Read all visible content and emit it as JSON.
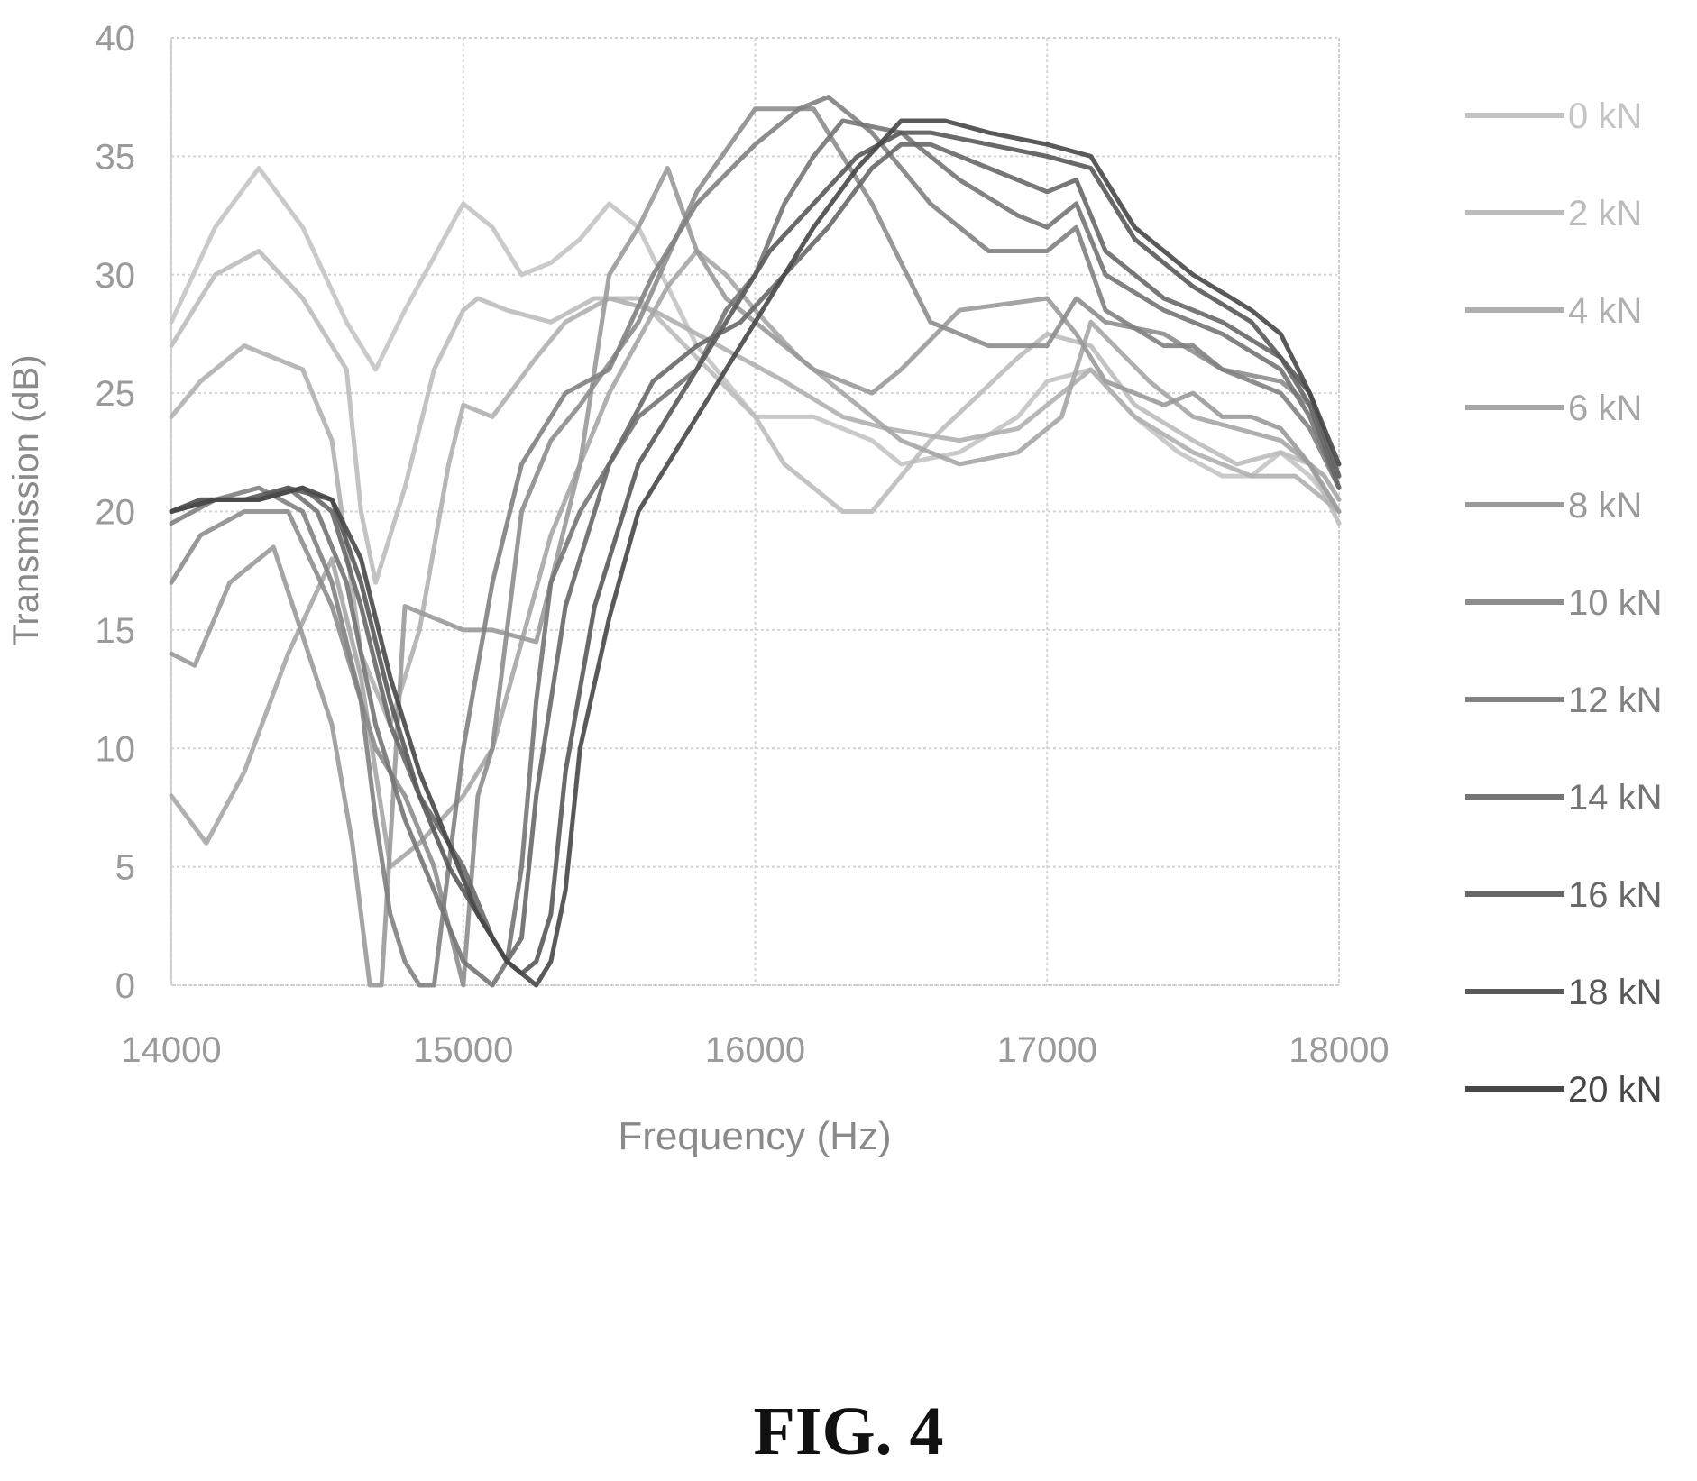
{
  "figure_caption": "FIG. 4",
  "chart_data": {
    "type": "line",
    "title": "",
    "xlabel": "Frequency (Hz)",
    "ylabel": "Transmission (dB)",
    "xlim": [
      14000,
      18000
    ],
    "ylim": [
      0,
      40
    ],
    "xticks": [
      14000,
      15000,
      16000,
      17000,
      18000
    ],
    "yticks": [
      0,
      5,
      10,
      15,
      20,
      25,
      30,
      35,
      40
    ],
    "grid": true,
    "legend_position": "right",
    "series": [
      {
        "name": "0 kN",
        "color": "#c4c4c4",
        "x": [
          14000,
          14150,
          14300,
          14450,
          14600,
          14700,
          14800,
          15000,
          15100,
          15200,
          15300,
          15400,
          15500,
          15600,
          15800,
          16000,
          16100,
          16200,
          16300,
          16400,
          16500,
          16700,
          16900,
          17000,
          17150,
          17300,
          17450,
          17600,
          17700,
          17800,
          17900,
          18000
        ],
        "y": [
          28,
          32,
          34.5,
          32,
          28,
          26,
          28.5,
          33,
          32,
          30,
          30.5,
          31.5,
          33,
          32,
          27,
          24,
          24,
          24,
          23.5,
          23,
          22,
          22.5,
          24,
          25.5,
          26,
          24,
          22.5,
          21.5,
          21.5,
          22.5,
          21.5,
          20
        ]
      },
      {
        "name": "2 kN",
        "color": "#bcbcbc",
        "x": [
          14000,
          14150,
          14300,
          14450,
          14600,
          14650,
          14700,
          14800,
          14900,
          15000,
          15050,
          15150,
          15300,
          15450,
          15600,
          15800,
          16000,
          16100,
          16200,
          16300,
          16400,
          16600,
          16900,
          17000,
          17150,
          17300,
          17500,
          17650,
          17800,
          17900,
          18000
        ],
        "y": [
          27,
          30,
          31,
          29,
          26,
          20,
          17,
          21,
          26,
          28.5,
          29,
          28.5,
          28,
          29,
          29,
          26.5,
          24,
          22,
          21,
          20,
          20,
          23,
          26.5,
          27.5,
          27,
          24.5,
          23,
          22,
          22.5,
          22,
          19.5
        ]
      },
      {
        "name": "4 kN",
        "color": "#b0b0b0",
        "x": [
          14000,
          14100,
          14250,
          14450,
          14550,
          14650,
          14750,
          14850,
          14950,
          15000,
          15100,
          15250,
          15350,
          15500,
          15650,
          15800,
          15950,
          16100,
          16300,
          16450,
          16700,
          16900,
          17000,
          17150,
          17300,
          17500,
          17700,
          17850,
          18000
        ],
        "y": [
          24,
          25.5,
          27,
          26,
          23,
          14,
          11,
          15,
          22,
          24.5,
          24,
          26.5,
          28,
          29,
          28.5,
          27.5,
          26.5,
          25.5,
          24,
          23.5,
          23,
          23.5,
          24.5,
          26,
          24,
          22.5,
          21.5,
          21.5,
          20
        ]
      },
      {
        "name": "6 kN",
        "color": "#a6a6a6",
        "x": [
          14000,
          14120,
          14250,
          14400,
          14550,
          14650,
          14750,
          14850,
          15000,
          15100,
          15300,
          15500,
          15700,
          15800,
          15900,
          16000,
          16150,
          16300,
          16500,
          16700,
          16900,
          17050,
          17150,
          17350,
          17500,
          17650,
          17800,
          17950,
          18000
        ],
        "y": [
          8,
          6,
          9,
          14,
          18,
          13,
          5,
          6,
          8,
          10,
          19,
          25,
          29.5,
          31,
          30,
          28.5,
          26.5,
          25,
          23,
          22,
          22.5,
          24,
          28,
          25.5,
          24,
          23.5,
          23,
          21.5,
          20.5
        ]
      },
      {
        "name": "8 kN",
        "color": "#9a9a9a",
        "x": [
          14000,
          14080,
          14200,
          14350,
          14550,
          14620,
          14680,
          14720,
          14800,
          15000,
          15100,
          15250,
          15400,
          15500,
          15600,
          15700,
          15800,
          15900,
          16000,
          16100,
          16200,
          16400,
          16500,
          16700,
          17000,
          17100,
          17200,
          17300,
          17400,
          17500,
          17600,
          17700,
          17800,
          17900,
          18000
        ],
        "y": [
          14,
          13.5,
          17,
          18.5,
          11,
          6,
          0,
          0,
          16,
          15,
          15,
          14.5,
          22,
          30,
          32,
          34.5,
          31,
          29,
          28,
          27,
          26,
          25,
          26,
          28.5,
          29,
          27.5,
          25.5,
          25,
          24.5,
          25,
          24,
          24,
          23.5,
          22,
          20
        ]
      },
      {
        "name": "10 kN",
        "color": "#8d8d8d",
        "x": [
          14000,
          14100,
          14250,
          14400,
          14550,
          14700,
          14800,
          14900,
          15000,
          15050,
          15100,
          15200,
          15300,
          15400,
          15600,
          15800,
          16000,
          16200,
          16400,
          16600,
          16800,
          17000,
          17100,
          17200,
          17400,
          17600,
          17800,
          17900,
          18000
        ],
        "y": [
          17,
          19,
          20,
          20,
          16,
          10,
          8,
          5,
          0,
          8,
          10,
          20,
          23,
          24.5,
          28,
          33.5,
          37,
          37,
          33,
          28,
          27,
          27,
          29,
          28,
          27.5,
          26,
          25.5,
          24.5,
          21
        ]
      },
      {
        "name": "12 kN",
        "color": "#818181",
        "x": [
          14000,
          14150,
          14300,
          14450,
          14550,
          14650,
          14700,
          14750,
          14800,
          14850,
          14900,
          15000,
          15100,
          15200,
          15350,
          15500,
          15650,
          15800,
          16000,
          16150,
          16250,
          16400,
          16600,
          16800,
          17000,
          17100,
          17200,
          17400,
          17500,
          17600,
          17700,
          17800,
          17900,
          18000
        ],
        "y": [
          19.5,
          20.5,
          21,
          20,
          17,
          12,
          7,
          3,
          1,
          0,
          0,
          10,
          17,
          22,
          25,
          26,
          30,
          33,
          35.5,
          37,
          37.5,
          36,
          33,
          31,
          31,
          32,
          28.5,
          27,
          27,
          26,
          25.5,
          25,
          23.5,
          21
        ]
      },
      {
        "name": "14 kN",
        "color": "#747474",
        "x": [
          14000,
          14100,
          14200,
          14300,
          14400,
          14500,
          14600,
          14700,
          14800,
          14900,
          15000,
          15100,
          15150,
          15200,
          15250,
          15300,
          15400,
          15500,
          15600,
          15700,
          15800,
          15900,
          16000,
          16100,
          16200,
          16300,
          16500,
          16700,
          16900,
          17000,
          17100,
          17200,
          17400,
          17600,
          17800,
          17900,
          18000
        ],
        "y": [
          20,
          20.5,
          20.5,
          20.5,
          21,
          20,
          17,
          11,
          7,
          4,
          1,
          0,
          1,
          5,
          12,
          17,
          20,
          22,
          24,
          25,
          26,
          28.5,
          30,
          33,
          35,
          36.5,
          36,
          34,
          32.5,
          32,
          33,
          30,
          28.5,
          27.5,
          26,
          24,
          21
        ]
      },
      {
        "name": "16 kN",
        "color": "#686868",
        "x": [
          14000,
          14150,
          14300,
          14450,
          14550,
          14650,
          14750,
          14850,
          15000,
          15100,
          15150,
          15200,
          15250,
          15350,
          15500,
          15650,
          15800,
          15950,
          16100,
          16250,
          16400,
          16500,
          16600,
          16800,
          17000,
          17100,
          17200,
          17400,
          17600,
          17800,
          17900,
          18000
        ],
        "y": [
          20,
          20.5,
          20.5,
          21,
          20,
          16,
          11,
          8,
          5,
          2,
          1,
          2,
          8,
          16,
          22,
          25.5,
          27,
          28,
          30,
          32,
          34.5,
          35.5,
          35.5,
          34.5,
          33.5,
          34,
          31,
          29,
          28,
          26.5,
          24.5,
          21
        ]
      },
      {
        "name": "18 kN",
        "color": "#595959",
        "x": [
          14000,
          14100,
          14250,
          14400,
          14550,
          14650,
          14750,
          14850,
          14950,
          15050,
          15150,
          15200,
          15250,
          15300,
          15350,
          15450,
          15600,
          15750,
          15900,
          16050,
          16200,
          16350,
          16500,
          16600,
          16800,
          17000,
          17150,
          17300,
          17500,
          17700,
          17800,
          17900,
          18000
        ],
        "y": [
          20,
          20.5,
          20.5,
          21,
          20.5,
          17,
          12,
          8,
          5,
          3,
          1,
          0.5,
          1,
          3,
          9,
          16,
          22,
          25,
          28,
          31,
          33,
          35,
          36,
          36,
          35.5,
          35,
          34.5,
          31.5,
          29.5,
          28,
          26.5,
          25,
          21.5
        ]
      },
      {
        "name": "20 kN",
        "color": "#474747",
        "x": [
          14000,
          14150,
          14300,
          14450,
          14550,
          14650,
          14750,
          14850,
          14950,
          15050,
          15150,
          15250,
          15300,
          15350,
          15400,
          15500,
          15600,
          15700,
          15800,
          15900,
          16000,
          16200,
          16350,
          16500,
          16650,
          16800,
          17000,
          17150,
          17300,
          17500,
          17700,
          17800,
          17900,
          18000
        ],
        "y": [
          20,
          20.5,
          20.5,
          21,
          20.5,
          18,
          13,
          9,
          6,
          3,
          1,
          0,
          1,
          4,
          10,
          15.5,
          20,
          22,
          24,
          26,
          28,
          32,
          34.5,
          36.5,
          36.5,
          36,
          35.5,
          35,
          32,
          30,
          28.5,
          27.5,
          25,
          22
        ]
      }
    ]
  }
}
